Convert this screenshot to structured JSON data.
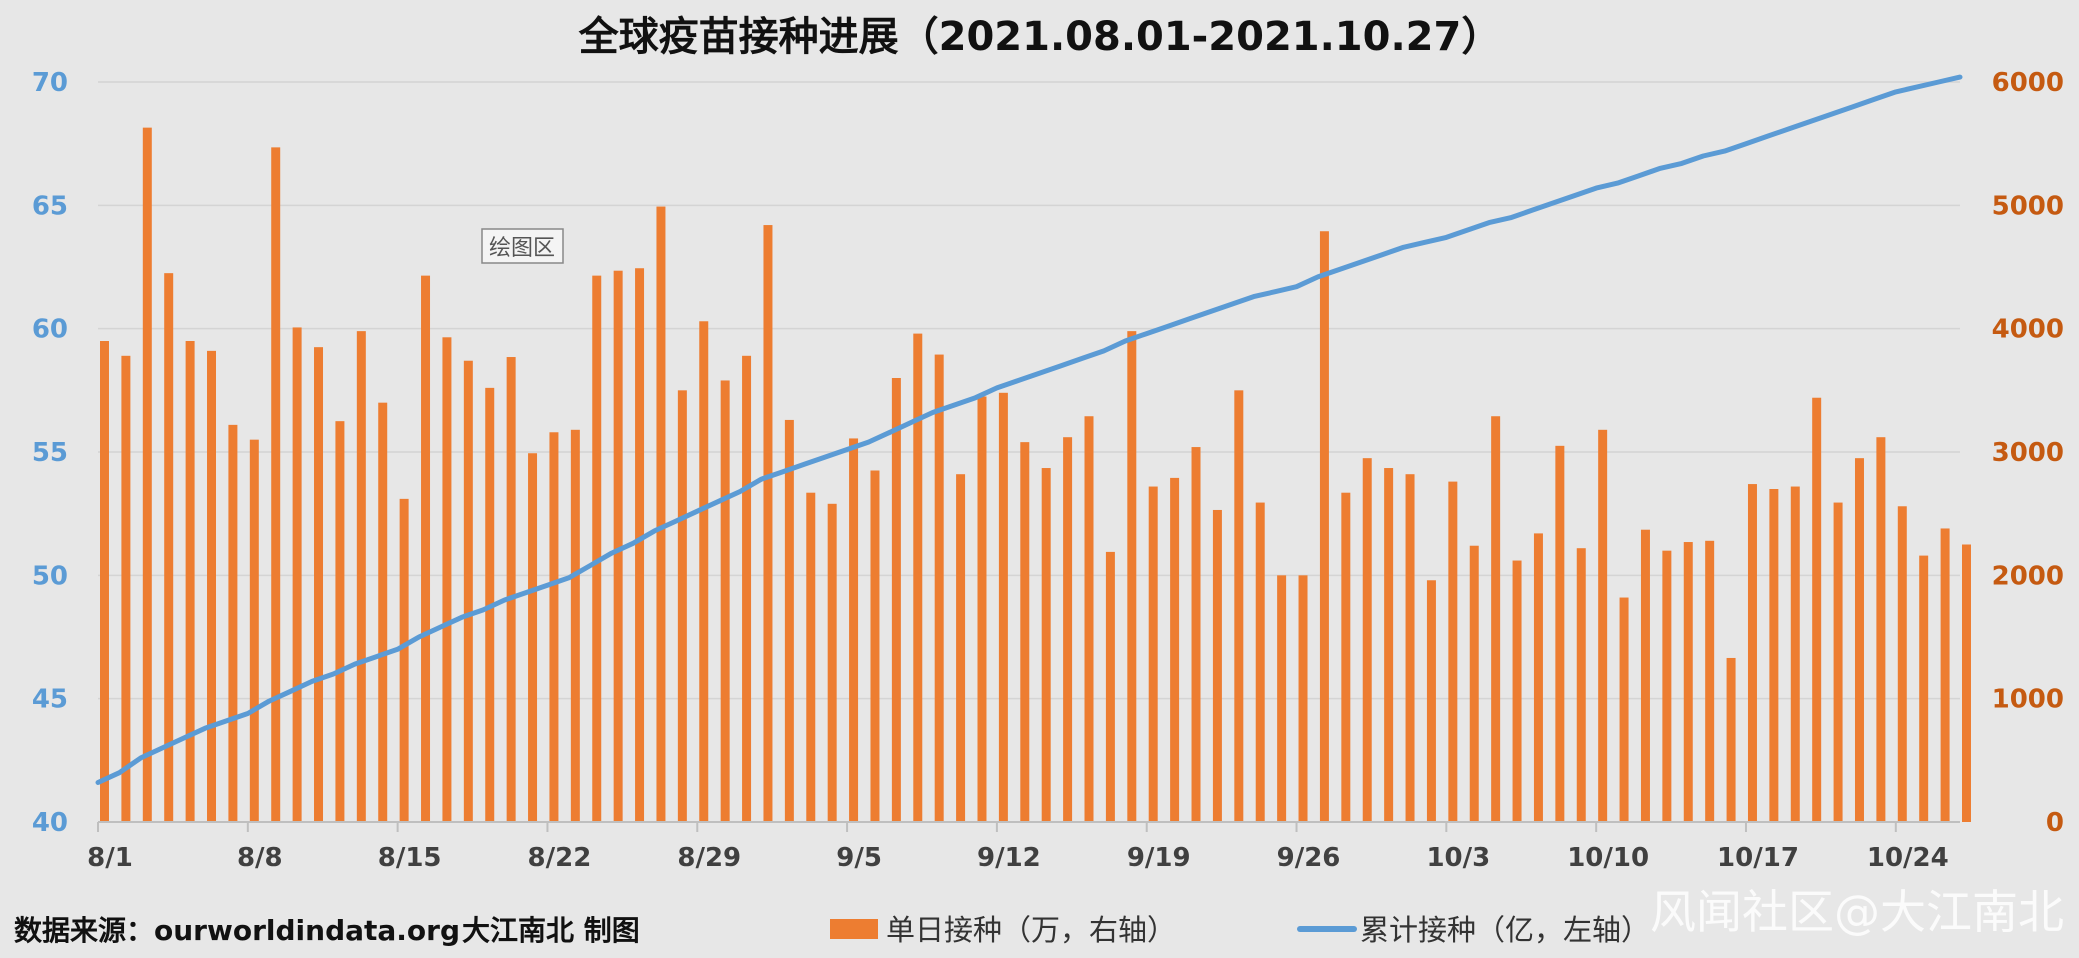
{
  "chart_data": {
    "type": "bar+line",
    "title": "全球疫苗接种进展（2021.08.01-2021.10.27）",
    "x": [
      "8/1",
      "8/2",
      "8/3",
      "8/4",
      "8/5",
      "8/6",
      "8/7",
      "8/8",
      "8/9",
      "8/10",
      "8/11",
      "8/12",
      "8/13",
      "8/14",
      "8/15",
      "8/16",
      "8/17",
      "8/18",
      "8/19",
      "8/20",
      "8/21",
      "8/22",
      "8/23",
      "8/24",
      "8/25",
      "8/26",
      "8/27",
      "8/28",
      "8/29",
      "8/30",
      "8/31",
      "9/1",
      "9/2",
      "9/3",
      "9/4",
      "9/5",
      "9/6",
      "9/7",
      "9/8",
      "9/9",
      "9/10",
      "9/11",
      "9/12",
      "9/13",
      "9/14",
      "9/15",
      "9/16",
      "9/17",
      "9/18",
      "9/19",
      "9/20",
      "9/21",
      "9/22",
      "9/23",
      "9/24",
      "9/25",
      "9/26",
      "9/27",
      "9/28",
      "9/29",
      "9/30",
      "10/1",
      "10/2",
      "10/3",
      "10/4",
      "10/5",
      "10/6",
      "10/7",
      "10/8",
      "10/9",
      "10/10",
      "10/11",
      "10/12",
      "10/13",
      "10/14",
      "10/15",
      "10/16",
      "10/17",
      "10/18",
      "10/19",
      "10/20",
      "10/21",
      "10/22",
      "10/23",
      "10/24",
      "10/25",
      "10/26",
      "10/27"
    ],
    "x_tick_labels": [
      "8/1",
      "8/8",
      "8/15",
      "8/22",
      "8/29",
      "9/5",
      "9/12",
      "9/19",
      "9/26",
      "10/3",
      "10/10",
      "10/17",
      "10/24"
    ],
    "series": [
      {
        "name": "单日接种（万，右轴）",
        "kind": "bar",
        "axis": "right",
        "color": "#ed7d31",
        "values": [
          3900,
          3780,
          5630,
          4450,
          3900,
          3820,
          3220,
          3100,
          5470,
          4010,
          3850,
          3250,
          3980,
          3400,
          2620,
          4430,
          3930,
          3740,
          3520,
          3770,
          2990,
          3160,
          3180,
          4430,
          4470,
          4490,
          4990,
          3500,
          4060,
          3580,
          3780,
          4840,
          3260,
          2670,
          2580,
          3110,
          2850,
          3600,
          3960,
          3790,
          2820,
          3450,
          3480,
          3080,
          2870,
          3120,
          3290,
          2190,
          3980,
          2720,
          2790,
          3040,
          2530,
          3500,
          2590,
          2000,
          2000,
          4790,
          2670,
          2950,
          2870,
          2820,
          1960,
          2760,
          2240,
          3290,
          2120,
          2340,
          3050,
          2220,
          3180,
          1820,
          2370,
          2200,
          2270,
          2280,
          1330,
          2740,
          2700,
          2720,
          3440,
          2590,
          2950,
          3120,
          2560,
          2160,
          2380,
          2250
        ]
      },
      {
        "name": "累计接种（亿，左轴）",
        "kind": "line",
        "axis": "left",
        "color": "#5b9bd5",
        "values": [
          41.6,
          42.0,
          42.6,
          43.0,
          43.4,
          43.8,
          44.1,
          44.4,
          44.9,
          45.3,
          45.7,
          46.0,
          46.4,
          46.7,
          47.0,
          47.5,
          47.9,
          48.3,
          48.6,
          49.0,
          49.3,
          49.6,
          49.9,
          50.4,
          50.9,
          51.3,
          51.8,
          52.2,
          52.6,
          53.0,
          53.4,
          53.9,
          54.2,
          54.5,
          54.8,
          55.1,
          55.4,
          55.8,
          56.2,
          56.6,
          56.9,
          57.2,
          57.6,
          57.9,
          58.2,
          58.5,
          58.8,
          59.1,
          59.5,
          59.8,
          60.1,
          60.4,
          60.7,
          61.0,
          61.3,
          61.5,
          61.7,
          62.1,
          62.4,
          62.7,
          63.0,
          63.3,
          63.5,
          63.7,
          64.0,
          64.3,
          64.5,
          64.8,
          65.1,
          65.4,
          65.7,
          65.9,
          66.2,
          66.5,
          66.7,
          67.0,
          67.2,
          67.5,
          67.8,
          68.1,
          68.4,
          68.7,
          69.0,
          69.3,
          69.6,
          69.8,
          70.0,
          70.2
        ]
      }
    ],
    "y_left": {
      "range": [
        40,
        70
      ],
      "ticks": [
        "40",
        "45",
        "50",
        "55",
        "60",
        "65",
        "70"
      ]
    },
    "y_right": {
      "range": [
        0,
        6000
      ],
      "ticks": [
        "0",
        "1000",
        "2000",
        "3000",
        "4000",
        "5000",
        "6000"
      ]
    },
    "grid": true,
    "legend_position": "bottom"
  },
  "footer": {
    "source": "数据来源：ourworldindata.org",
    "credit": "大江南北 制图"
  },
  "tooltip": "绘图区",
  "watermark": "风闻社区@大江南北",
  "colors": {
    "background": "#e7e7e7",
    "grid": "#d4d4d4",
    "left_axis": "#5b9bd5",
    "right_axis": "#c55a11"
  }
}
